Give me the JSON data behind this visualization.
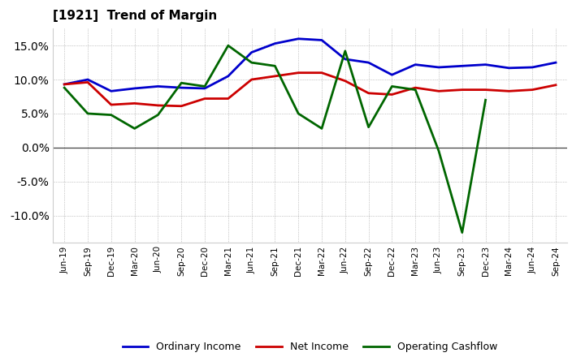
{
  "title": "[1921]  Trend of Margin",
  "x_labels": [
    "Jun-19",
    "Sep-19",
    "Dec-19",
    "Mar-20",
    "Jun-20",
    "Sep-20",
    "Dec-20",
    "Mar-21",
    "Jun-21",
    "Sep-21",
    "Dec-21",
    "Mar-22",
    "Jun-22",
    "Sep-22",
    "Dec-22",
    "Mar-23",
    "Jun-23",
    "Sep-23",
    "Dec-23",
    "Mar-24",
    "Jun-24",
    "Sep-24"
  ],
  "ordinary_income": [
    9.3,
    10.0,
    8.3,
    8.7,
    9.0,
    8.8,
    8.7,
    10.5,
    14.0,
    15.3,
    16.0,
    15.8,
    13.0,
    12.5,
    10.7,
    12.2,
    11.8,
    12.0,
    12.2,
    11.7,
    11.8,
    12.5
  ],
  "net_income": [
    9.3,
    9.6,
    6.3,
    6.5,
    6.2,
    6.1,
    7.2,
    7.2,
    10.0,
    10.5,
    11.0,
    11.0,
    9.8,
    8.0,
    7.8,
    8.8,
    8.3,
    8.5,
    8.5,
    8.3,
    8.5,
    9.2
  ],
  "operating_cashflow": [
    8.8,
    5.0,
    4.8,
    2.8,
    4.8,
    9.5,
    9.0,
    15.0,
    12.5,
    12.0,
    5.0,
    2.8,
    14.2,
    3.0,
    9.0,
    8.5,
    -0.5,
    -12.5,
    7.0,
    null,
    null,
    null
  ],
  "ylim": [
    -14,
    17.5
  ],
  "yticks": [
    -10.0,
    -5.0,
    0.0,
    5.0,
    10.0,
    15.0
  ],
  "colors": {
    "ordinary_income": "#0000cc",
    "net_income": "#cc0000",
    "operating_cashflow": "#006600"
  },
  "legend_labels": [
    "Ordinary Income",
    "Net Income",
    "Operating Cashflow"
  ],
  "background_color": "#ffffff",
  "grid_color": "#999999"
}
